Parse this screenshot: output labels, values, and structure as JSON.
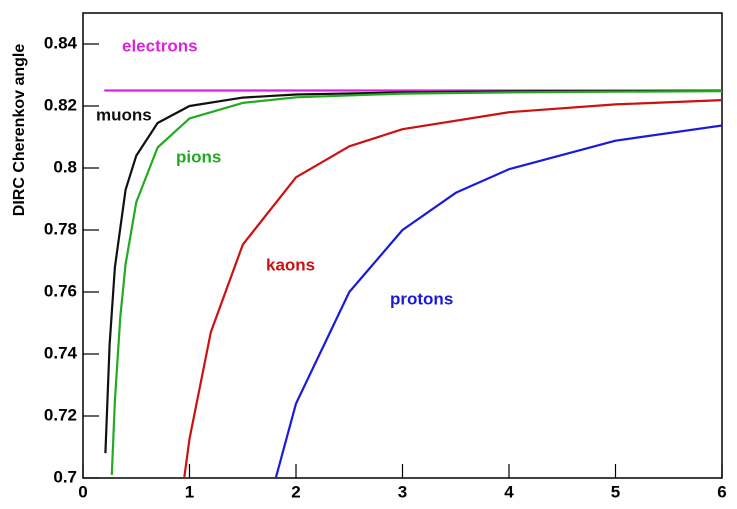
{
  "chart_data": {
    "type": "line",
    "y_label": "DIRC Cherenkov angle",
    "xlim": [
      0,
      6
    ],
    "ylim": [
      0.7,
      0.85
    ],
    "xticks": [
      0,
      1,
      2,
      3,
      4,
      5,
      6
    ],
    "yticks": [
      0.7,
      0.72,
      0.74,
      0.76,
      0.78,
      0.8,
      0.82,
      0.84
    ],
    "series": [
      {
        "name": "electrons",
        "color": "#dd22dd",
        "x": [
          0.2,
          6
        ],
        "values": [
          0.825,
          0.825
        ]
      },
      {
        "name": "muons",
        "color": "#111111",
        "x": [
          0.21,
          0.25,
          0.3,
          0.4,
          0.5,
          0.7,
          1,
          1.5,
          2,
          3,
          4,
          6
        ],
        "values": [
          0.708,
          0.743,
          0.768,
          0.793,
          0.804,
          0.8145,
          0.82,
          0.8227,
          0.8237,
          0.8244,
          0.8247,
          0.8249
        ]
      },
      {
        "name": "pions",
        "color": "#22aa22",
        "x": [
          0.27,
          0.3,
          0.35,
          0.4,
          0.5,
          0.7,
          1,
          1.5,
          2,
          3,
          4,
          5,
          6
        ],
        "values": [
          0.701,
          0.725,
          0.752,
          0.769,
          0.789,
          0.8066,
          0.816,
          0.821,
          0.8228,
          0.824,
          0.8244,
          0.8246,
          0.8248
        ]
      },
      {
        "name": "kaons",
        "color": "#cc1111",
        "x": [
          0.95,
          1,
          1.2,
          1.5,
          2,
          2.5,
          3,
          4,
          5,
          6
        ],
        "values": [
          0.7,
          0.7126,
          0.747,
          0.7753,
          0.797,
          0.807,
          0.8125,
          0.818,
          0.8205,
          0.8219
        ]
      },
      {
        "name": "protons",
        "color": "#1a1add",
        "x": [
          1.81,
          2,
          2.5,
          3,
          3.5,
          4,
          5,
          6
        ],
        "values": [
          0.7,
          0.724,
          0.76,
          0.78,
          0.792,
          0.7996,
          0.8088,
          0.8137
        ]
      }
    ]
  }
}
